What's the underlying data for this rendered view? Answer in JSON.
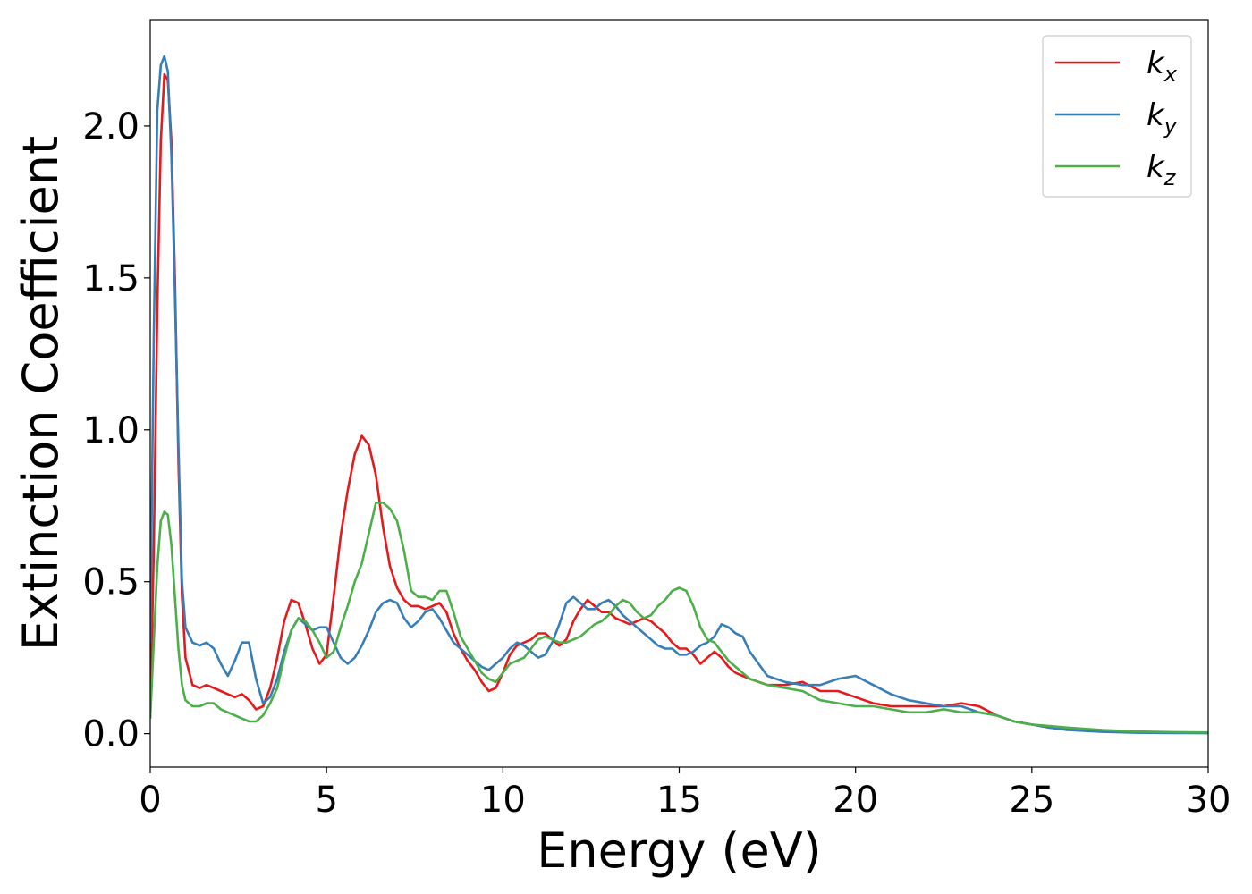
{
  "chart_data": {
    "type": "line",
    "xlabel": "Energy (eV)",
    "ylabel": "Extinction Coefficient",
    "xlim": [
      0,
      30
    ],
    "ylim": [
      -0.11,
      2.35
    ],
    "xticks": [
      "0",
      "5",
      "10",
      "15",
      "20",
      "25",
      "30"
    ],
    "yticks": [
      "0.0",
      "0.5",
      "1.0",
      "1.5",
      "2.0"
    ],
    "grid": false,
    "legend_position": "top-right",
    "series": [
      {
        "name": "k",
        "subscript": "x",
        "color": "#e41a1c",
        "x": [
          0.0,
          0.1,
          0.2,
          0.3,
          0.4,
          0.5,
          0.6,
          0.7,
          0.8,
          0.9,
          1.0,
          1.2,
          1.4,
          1.6,
          1.8,
          2.0,
          2.2,
          2.4,
          2.6,
          2.8,
          3.0,
          3.2,
          3.4,
          3.6,
          3.8,
          4.0,
          4.2,
          4.4,
          4.6,
          4.8,
          5.0,
          5.2,
          5.4,
          5.6,
          5.8,
          6.0,
          6.2,
          6.4,
          6.6,
          6.8,
          7.0,
          7.2,
          7.4,
          7.6,
          7.8,
          8.0,
          8.2,
          8.4,
          8.6,
          8.8,
          9.0,
          9.2,
          9.4,
          9.6,
          9.8,
          10.0,
          10.2,
          10.4,
          10.6,
          10.8,
          11.0,
          11.2,
          11.4,
          11.6,
          11.8,
          12.0,
          12.2,
          12.4,
          12.6,
          12.8,
          13.0,
          13.2,
          13.4,
          13.6,
          13.8,
          14.0,
          14.2,
          14.4,
          14.6,
          14.8,
          15.0,
          15.2,
          15.4,
          15.6,
          15.8,
          16.0,
          16.2,
          16.4,
          16.6,
          16.8,
          17.0,
          17.5,
          18.0,
          18.5,
          19.0,
          19.5,
          20.0,
          20.5,
          21.0,
          21.5,
          22.0,
          22.5,
          23.0,
          23.5,
          24.0,
          24.5,
          25.0,
          25.5,
          26.0,
          27.0,
          28.0,
          29.0,
          30.0
        ],
        "y": [
          0.05,
          0.6,
          1.4,
          1.95,
          2.17,
          2.15,
          1.95,
          1.5,
          0.9,
          0.45,
          0.25,
          0.16,
          0.15,
          0.16,
          0.15,
          0.14,
          0.13,
          0.12,
          0.13,
          0.11,
          0.08,
          0.09,
          0.15,
          0.25,
          0.37,
          0.44,
          0.43,
          0.36,
          0.28,
          0.23,
          0.26,
          0.45,
          0.65,
          0.8,
          0.92,
          0.98,
          0.95,
          0.85,
          0.68,
          0.55,
          0.48,
          0.44,
          0.42,
          0.42,
          0.41,
          0.42,
          0.43,
          0.4,
          0.33,
          0.28,
          0.24,
          0.21,
          0.17,
          0.14,
          0.15,
          0.2,
          0.26,
          0.29,
          0.3,
          0.31,
          0.33,
          0.33,
          0.31,
          0.29,
          0.31,
          0.37,
          0.41,
          0.44,
          0.42,
          0.4,
          0.4,
          0.38,
          0.37,
          0.36,
          0.37,
          0.38,
          0.37,
          0.35,
          0.33,
          0.3,
          0.28,
          0.28,
          0.26,
          0.23,
          0.25,
          0.27,
          0.25,
          0.22,
          0.2,
          0.19,
          0.18,
          0.16,
          0.16,
          0.17,
          0.14,
          0.14,
          0.12,
          0.1,
          0.09,
          0.09,
          0.09,
          0.09,
          0.1,
          0.09,
          0.06,
          0.04,
          0.03,
          0.02,
          0.015,
          0.008,
          0.004,
          0.003,
          0.002
        ]
      },
      {
        "name": "k",
        "subscript": "y",
        "color": "#377eb8",
        "x": [
          0.0,
          0.1,
          0.2,
          0.3,
          0.4,
          0.5,
          0.6,
          0.7,
          0.8,
          0.9,
          1.0,
          1.2,
          1.4,
          1.6,
          1.8,
          2.0,
          2.2,
          2.4,
          2.6,
          2.8,
          3.0,
          3.2,
          3.4,
          3.6,
          3.8,
          4.0,
          4.2,
          4.4,
          4.6,
          4.8,
          5.0,
          5.2,
          5.4,
          5.6,
          5.8,
          6.0,
          6.2,
          6.4,
          6.6,
          6.8,
          7.0,
          7.2,
          7.4,
          7.6,
          7.8,
          8.0,
          8.2,
          8.4,
          8.6,
          8.8,
          9.0,
          9.2,
          9.4,
          9.6,
          9.8,
          10.0,
          10.2,
          10.4,
          10.6,
          10.8,
          11.0,
          11.2,
          11.4,
          11.6,
          11.8,
          12.0,
          12.2,
          12.4,
          12.6,
          12.8,
          13.0,
          13.2,
          13.4,
          13.6,
          13.8,
          14.0,
          14.2,
          14.4,
          14.6,
          14.8,
          15.0,
          15.2,
          15.4,
          15.6,
          15.8,
          16.0,
          16.2,
          16.4,
          16.6,
          16.8,
          17.0,
          17.5,
          18.0,
          18.5,
          19.0,
          19.5,
          20.0,
          20.5,
          21.0,
          21.5,
          22.0,
          22.5,
          23.0,
          23.5,
          24.0,
          24.5,
          25.0,
          25.5,
          26.0,
          27.0,
          28.0,
          29.0,
          30.0
        ],
        "y": [
          0.3,
          1.3,
          2.05,
          2.2,
          2.23,
          2.18,
          1.9,
          1.45,
          0.95,
          0.5,
          0.35,
          0.3,
          0.29,
          0.3,
          0.28,
          0.23,
          0.19,
          0.24,
          0.3,
          0.3,
          0.18,
          0.1,
          0.12,
          0.18,
          0.27,
          0.34,
          0.38,
          0.36,
          0.34,
          0.35,
          0.35,
          0.3,
          0.25,
          0.23,
          0.25,
          0.29,
          0.34,
          0.4,
          0.43,
          0.44,
          0.43,
          0.38,
          0.35,
          0.37,
          0.4,
          0.41,
          0.38,
          0.34,
          0.3,
          0.28,
          0.26,
          0.24,
          0.22,
          0.21,
          0.23,
          0.25,
          0.28,
          0.3,
          0.29,
          0.27,
          0.25,
          0.26,
          0.3,
          0.36,
          0.43,
          0.45,
          0.43,
          0.41,
          0.41,
          0.43,
          0.44,
          0.42,
          0.39,
          0.37,
          0.35,
          0.33,
          0.31,
          0.29,
          0.28,
          0.28,
          0.26,
          0.26,
          0.27,
          0.29,
          0.3,
          0.32,
          0.36,
          0.35,
          0.33,
          0.32,
          0.27,
          0.19,
          0.17,
          0.16,
          0.16,
          0.18,
          0.19,
          0.16,
          0.13,
          0.11,
          0.1,
          0.09,
          0.09,
          0.07,
          0.06,
          0.04,
          0.03,
          0.02,
          0.012,
          0.006,
          0.003,
          0.002,
          0.002
        ]
      },
      {
        "name": "k",
        "subscript": "z",
        "color": "#4daf4a",
        "x": [
          0.0,
          0.1,
          0.2,
          0.3,
          0.4,
          0.5,
          0.6,
          0.7,
          0.8,
          0.9,
          1.0,
          1.2,
          1.4,
          1.6,
          1.8,
          2.0,
          2.2,
          2.4,
          2.6,
          2.8,
          3.0,
          3.2,
          3.4,
          3.6,
          3.8,
          4.0,
          4.2,
          4.4,
          4.6,
          4.8,
          5.0,
          5.2,
          5.4,
          5.6,
          5.8,
          6.0,
          6.2,
          6.4,
          6.6,
          6.8,
          7.0,
          7.2,
          7.4,
          7.6,
          7.8,
          8.0,
          8.2,
          8.4,
          8.6,
          8.8,
          9.0,
          9.2,
          9.4,
          9.6,
          9.8,
          10.0,
          10.2,
          10.4,
          10.6,
          10.8,
          11.0,
          11.2,
          11.4,
          11.6,
          11.8,
          12.0,
          12.2,
          12.4,
          12.6,
          12.8,
          13.0,
          13.2,
          13.4,
          13.6,
          13.8,
          14.0,
          14.2,
          14.4,
          14.6,
          14.8,
          15.0,
          15.2,
          15.4,
          15.6,
          15.8,
          16.0,
          16.2,
          16.4,
          16.6,
          16.8,
          17.0,
          17.5,
          18.0,
          18.5,
          19.0,
          19.5,
          20.0,
          20.5,
          21.0,
          21.5,
          22.0,
          22.5,
          23.0,
          23.5,
          24.0,
          24.5,
          25.0,
          25.5,
          26.0,
          27.0,
          28.0,
          29.0,
          30.0
        ],
        "y": [
          0.05,
          0.3,
          0.55,
          0.7,
          0.73,
          0.72,
          0.62,
          0.45,
          0.28,
          0.16,
          0.11,
          0.09,
          0.09,
          0.1,
          0.1,
          0.08,
          0.07,
          0.06,
          0.05,
          0.04,
          0.04,
          0.06,
          0.1,
          0.15,
          0.25,
          0.34,
          0.38,
          0.37,
          0.34,
          0.3,
          0.25,
          0.27,
          0.35,
          0.42,
          0.5,
          0.56,
          0.66,
          0.76,
          0.76,
          0.74,
          0.7,
          0.6,
          0.47,
          0.45,
          0.45,
          0.44,
          0.47,
          0.47,
          0.4,
          0.32,
          0.28,
          0.24,
          0.2,
          0.18,
          0.17,
          0.2,
          0.23,
          0.24,
          0.25,
          0.28,
          0.31,
          0.32,
          0.31,
          0.3,
          0.3,
          0.31,
          0.32,
          0.34,
          0.36,
          0.37,
          0.39,
          0.42,
          0.44,
          0.43,
          0.4,
          0.38,
          0.39,
          0.42,
          0.44,
          0.47,
          0.48,
          0.47,
          0.42,
          0.35,
          0.31,
          0.3,
          0.27,
          0.24,
          0.22,
          0.2,
          0.18,
          0.16,
          0.15,
          0.14,
          0.11,
          0.1,
          0.09,
          0.09,
          0.08,
          0.07,
          0.07,
          0.08,
          0.07,
          0.07,
          0.06,
          0.04,
          0.03,
          0.025,
          0.02,
          0.012,
          0.007,
          0.005,
          0.004
        ]
      }
    ]
  }
}
